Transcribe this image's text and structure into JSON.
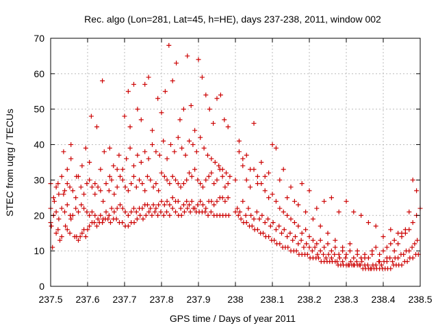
{
  "chart_data": {
    "type": "scatter",
    "title": "Rec. algo (Lon=281, Lat=45, h=HE), days 237-238, 2011, window 002",
    "xlabel": "GPS time / Days of year 2011",
    "ylabel": "STEC from uqrg / TECUs",
    "xlim": [
      237.5,
      238.5
    ],
    "ylim": [
      0,
      70
    ],
    "xticks": [
      237.5,
      237.6,
      237.7,
      237.8,
      237.9,
      238.0,
      238.1,
      238.2,
      238.3,
      238.4,
      238.5
    ],
    "xtick_labels": [
      "237.5",
      "237.6",
      "237.7",
      "237.8",
      "237.9",
      "238",
      "238.1",
      "238.2",
      "238.3",
      "238.4",
      "238.5"
    ],
    "yticks": [
      0,
      10,
      20,
      30,
      40,
      50,
      60,
      70
    ],
    "ytick_labels": [
      "0",
      "10",
      "20",
      "30",
      "40",
      "50",
      "60",
      "70"
    ],
    "grid": true,
    "marker": "+",
    "color": "#cc0000",
    "series": [
      {
        "x": [
          237.5,
          237.502,
          237.505,
          237.515,
          237.52,
          237.525,
          237.53,
          237.54,
          237.545,
          237.552,
          237.555,
          237.565,
          237.57,
          237.575,
          237.58,
          237.585,
          237.59,
          237.595,
          237.6,
          237.605,
          237.612,
          237.618,
          237.625,
          237.632,
          237.64,
          237.648,
          237.655,
          237.662,
          237.67,
          237.678,
          237.686,
          237.694,
          237.702,
          237.71,
          237.718,
          237.726,
          237.734,
          237.742,
          237.75,
          237.758,
          237.766,
          237.774,
          237.782,
          237.79,
          237.798,
          237.806,
          237.814,
          237.822,
          237.83,
          237.838,
          237.846,
          237.854,
          237.862,
          237.87,
          237.878,
          237.886,
          237.894,
          237.902,
          237.91,
          237.918,
          237.926,
          237.934,
          237.942,
          237.95,
          237.958,
          237.966,
          237.974,
          237.982
        ],
        "y": [
          18,
          17,
          11,
          15,
          16,
          13,
          14,
          17,
          16,
          15,
          19,
          14,
          14,
          13,
          14,
          15,
          16,
          14,
          16,
          17,
          18,
          18,
          17,
          18,
          18,
          19,
          19,
          18,
          19,
          19,
          18,
          18,
          17,
          17,
          18,
          18,
          19,
          20,
          19,
          20,
          21,
          20,
          21,
          20,
          21,
          20,
          21,
          20,
          22,
          21,
          20,
          20,
          21,
          22,
          21,
          22,
          21,
          21,
          21,
          21,
          20,
          21,
          20,
          20,
          20,
          20,
          20,
          20
        ]
      },
      {
        "x": [
          237.5,
          237.508,
          237.515,
          237.522,
          237.53,
          237.538,
          237.545,
          237.553,
          237.56,
          237.568,
          237.575,
          237.583,
          237.59,
          237.598,
          237.605,
          237.612,
          237.62,
          237.628,
          237.635,
          237.642,
          237.65,
          237.658,
          237.665,
          237.672,
          237.68,
          237.688,
          237.695,
          237.702,
          237.71,
          237.718,
          237.725,
          237.732,
          237.74,
          237.748,
          237.755,
          237.762,
          237.77,
          237.778,
          237.785,
          237.792,
          237.8,
          237.808,
          237.815,
          237.822,
          237.83,
          237.838,
          237.845,
          237.852,
          237.86,
          237.868,
          237.875,
          237.882,
          237.89,
          237.898,
          237.905,
          237.912,
          237.92,
          237.928,
          237.935,
          237.942,
          237.95,
          237.958,
          237.965,
          237.972,
          237.98
        ],
        "y": [
          22,
          20,
          21,
          19,
          22,
          21,
          23,
          20,
          20,
          22,
          21,
          23,
          22,
          21,
          20,
          21,
          20,
          19,
          20,
          19,
          21,
          20,
          22,
          21,
          22,
          23,
          22,
          21,
          20,
          21,
          22,
          21,
          22,
          22,
          23,
          23,
          22,
          23,
          22,
          23,
          24,
          23,
          24,
          23,
          25,
          24,
          24,
          22,
          23,
          24,
          23,
          24,
          22,
          23,
          24,
          23,
          22,
          24,
          24,
          23,
          24,
          25,
          25,
          24,
          25
        ]
      },
      {
        "x": [
          237.5,
          237.508,
          237.515,
          237.522,
          237.53,
          237.538,
          237.545,
          237.552,
          237.56,
          237.568,
          237.575,
          237.582,
          237.59,
          237.598,
          237.605,
          237.612,
          237.62,
          237.628,
          237.635,
          237.642,
          237.65,
          237.658,
          237.665,
          237.672,
          237.68,
          237.688,
          237.695,
          237.702,
          237.71,
          237.718,
          237.725,
          237.732,
          237.74,
          237.748,
          237.755,
          237.762,
          237.77,
          237.778,
          237.785,
          237.792,
          237.8,
          237.808,
          237.815,
          237.822,
          237.83,
          237.838,
          237.845,
          237.852,
          237.86,
          237.868,
          237.875,
          237.882,
          237.89,
          237.898,
          237.905,
          237.912,
          237.92,
          237.928,
          237.935,
          237.942,
          237.95,
          237.958,
          237.965,
          237.972,
          237.98
        ],
        "y": [
          29,
          25,
          28,
          26,
          31,
          27,
          29,
          28,
          27,
          25,
          31,
          28,
          26,
          29,
          30,
          28,
          26,
          28,
          27,
          24,
          29,
          27,
          30,
          26,
          28,
          31,
          30,
          28,
          27,
          29,
          31,
          28,
          30,
          29,
          27,
          31,
          30,
          28,
          29,
          27,
          32,
          31,
          30,
          29,
          31,
          30,
          29,
          28,
          29,
          30,
          32,
          31,
          33,
          30,
          29,
          28,
          30,
          31,
          32,
          29,
          30,
          33,
          31,
          28,
          29
        ]
      },
      {
        "x": [
          237.51,
          237.52,
          237.535,
          237.545,
          237.555,
          237.57,
          237.585,
          237.595,
          237.605,
          237.62,
          237.635,
          237.645,
          237.66,
          237.67,
          237.685,
          237.695,
          237.705,
          237.715,
          237.725,
          237.735,
          237.745,
          237.755,
          237.765,
          237.775,
          237.785,
          237.795,
          237.805,
          237.815,
          237.825,
          237.835,
          237.845,
          237.855,
          237.865,
          237.875,
          237.885,
          237.895,
          237.905,
          237.915,
          237.925,
          237.935,
          237.945,
          237.955,
          237.965,
          237.975,
          237.985
        ],
        "y": [
          24,
          29,
          26,
          33,
          36,
          31,
          34,
          39,
          35,
          29,
          33,
          38,
          31,
          34,
          37,
          33,
          36,
          39,
          34,
          37,
          35,
          38,
          36,
          40,
          38,
          37,
          41,
          36,
          40,
          38,
          42,
          39,
          37,
          41,
          40,
          38,
          42,
          39,
          37,
          36,
          35,
          34,
          33,
          32,
          31
        ]
      },
      {
        "x": [
          237.535,
          237.555,
          237.61,
          237.625,
          237.64,
          237.66,
          237.68,
          237.7,
          237.71,
          237.715,
          237.725,
          237.735,
          237.745,
          237.755,
          237.765,
          237.775,
          237.79,
          237.8,
          237.81,
          237.82,
          237.83,
          237.84,
          237.85,
          237.86,
          237.87,
          237.88,
          237.89,
          237.9,
          237.91,
          237.92,
          237.93,
          237.94,
          237.95,
          237.96,
          237.97,
          237.98
        ],
        "y": [
          38,
          40,
          48,
          45,
          58,
          39,
          33,
          48,
          55,
          45,
          57,
          50,
          47,
          57,
          59,
          44,
          53,
          49,
          55,
          68,
          58,
          63,
          47,
          50,
          65,
          51,
          44,
          64,
          59,
          54,
          50,
          46,
          53,
          54,
          47,
          45
        ]
      },
      {
        "x": [
          238.0,
          238.008,
          238.015,
          238.022,
          238.03,
          238.038,
          238.045,
          238.052,
          238.06,
          238.068,
          238.075,
          238.082,
          238.09,
          238.098,
          238.105,
          238.112,
          238.12,
          238.128,
          238.135,
          238.142,
          238.15,
          238.158,
          238.165,
          238.172,
          238.18,
          238.188,
          238.195,
          238.202,
          238.21,
          238.218,
          238.225,
          238.232,
          238.24,
          238.248,
          238.255,
          238.262,
          238.27,
          238.278,
          238.285,
          238.292,
          238.3,
          238.308,
          238.315,
          238.322,
          238.33,
          238.338,
          238.345,
          238.352,
          238.36,
          238.368,
          238.375,
          238.382,
          238.39,
          238.398,
          238.405,
          238.412,
          238.42,
          238.428,
          238.435,
          238.442,
          238.45,
          238.458,
          238.465,
          238.472,
          238.48,
          238.488,
          238.495
        ],
        "y": [
          21,
          20,
          19,
          18,
          18,
          17,
          17,
          16,
          16,
          15,
          15,
          14,
          14,
          13,
          13,
          12,
          12,
          11,
          11,
          11,
          10,
          10,
          10,
          9,
          9,
          9,
          9,
          8,
          8,
          8,
          8,
          7,
          7,
          7,
          7,
          7,
          7,
          6,
          6,
          6,
          6,
          6,
          6,
          6,
          6,
          6,
          5,
          5,
          5,
          5,
          5,
          5,
          5,
          5,
          5,
          5,
          5,
          6,
          6,
          6,
          6,
          7,
          7,
          8,
          8,
          9,
          9
        ]
      },
      {
        "x": [
          238.005,
          238.012,
          238.02,
          238.028,
          238.035,
          238.042,
          238.05,
          238.058,
          238.065,
          238.072,
          238.08,
          238.088,
          238.095,
          238.102,
          238.11,
          238.118,
          238.125,
          238.132,
          238.14,
          238.148,
          238.155,
          238.162,
          238.17,
          238.178,
          238.185,
          238.192,
          238.2,
          238.208,
          238.215,
          238.222,
          238.23,
          238.238,
          238.245,
          238.252,
          238.26,
          238.268,
          238.275,
          238.282,
          238.29,
          238.298,
          238.305,
          238.312,
          238.32,
          238.328,
          238.335,
          238.342,
          238.35,
          238.358,
          238.365,
          238.372,
          238.38,
          238.388,
          238.395,
          238.402,
          238.41,
          238.418,
          238.425,
          238.432,
          238.44,
          238.448,
          238.455,
          238.462,
          238.47,
          238.478,
          238.485,
          238.492
        ],
        "y": [
          22,
          21,
          24,
          20,
          22,
          20,
          19,
          21,
          19,
          20,
          18,
          19,
          17,
          18,
          16,
          17,
          15,
          16,
          14,
          15,
          13,
          14,
          12,
          13,
          11,
          12,
          11,
          10,
          11,
          9,
          10,
          9,
          8,
          9,
          8,
          9,
          7,
          8,
          7,
          8,
          6,
          7,
          6,
          7,
          6,
          7,
          6,
          6,
          5,
          6,
          6,
          7,
          6,
          7,
          7,
          8,
          7,
          8,
          8,
          9,
          9,
          10,
          10,
          11,
          12,
          13
        ]
      },
      {
        "x": [
          238.0,
          238.01,
          238.02,
          238.03,
          238.04,
          238.05,
          238.06,
          238.07,
          238.08,
          238.09,
          238.1,
          238.11,
          238.12,
          238.13,
          238.14,
          238.15,
          238.16,
          238.17,
          238.18,
          238.19,
          238.2,
          238.21,
          238.22,
          238.23,
          238.24,
          238.25,
          238.26,
          238.27,
          238.28,
          238.29,
          238.3,
          238.31,
          238.32,
          238.33,
          238.34,
          238.35,
          238.36,
          238.37,
          238.38,
          238.39,
          238.4,
          238.41,
          238.42,
          238.43,
          238.44,
          238.45,
          238.46,
          238.47,
          238.48,
          238.49,
          238.5
        ],
        "y": [
          30,
          38,
          34,
          30,
          28,
          33,
          31,
          29,
          27,
          25,
          26,
          24,
          22,
          21,
          20,
          19,
          18,
          17,
          15,
          16,
          14,
          13,
          12,
          13,
          11,
          12,
          10,
          11,
          9,
          10,
          9,
          10,
          8,
          9,
          8,
          9,
          8,
          10,
          11,
          9,
          10,
          11,
          12,
          13,
          12,
          14,
          15,
          16,
          18,
          20,
          22
        ]
      },
      {
        "x": [
          238.01,
          238.03,
          238.05,
          238.07,
          238.09,
          238.11,
          238.13,
          238.15,
          238.17,
          238.19,
          238.21,
          238.23,
          238.25,
          238.27,
          238.29,
          238.31,
          238.33,
          238.35,
          238.37,
          238.39,
          238.41,
          238.43,
          238.45,
          238.47,
          238.49
        ],
        "y": [
          41,
          37,
          46,
          35,
          32,
          39,
          33,
          28,
          23,
          21,
          19,
          17,
          15,
          13,
          11,
          12,
          10,
          8,
          9,
          7,
          8,
          10,
          15,
          21,
          27
        ]
      },
      {
        "x": [
          238.02,
          238.04,
          238.06,
          238.08,
          238.1,
          238.12,
          238.14,
          238.16,
          238.18,
          238.2,
          238.22,
          238.24,
          238.26,
          238.28,
          238.3,
          238.32,
          238.34,
          238.36,
          238.38,
          238.4,
          238.42,
          238.44,
          238.46,
          238.48
        ],
        "y": [
          36,
          33,
          29,
          31,
          40,
          30,
          25,
          24,
          29,
          27,
          22,
          24,
          25,
          21,
          24,
          21,
          20,
          18,
          17,
          14,
          16,
          15,
          16,
          30
        ]
      }
    ]
  }
}
